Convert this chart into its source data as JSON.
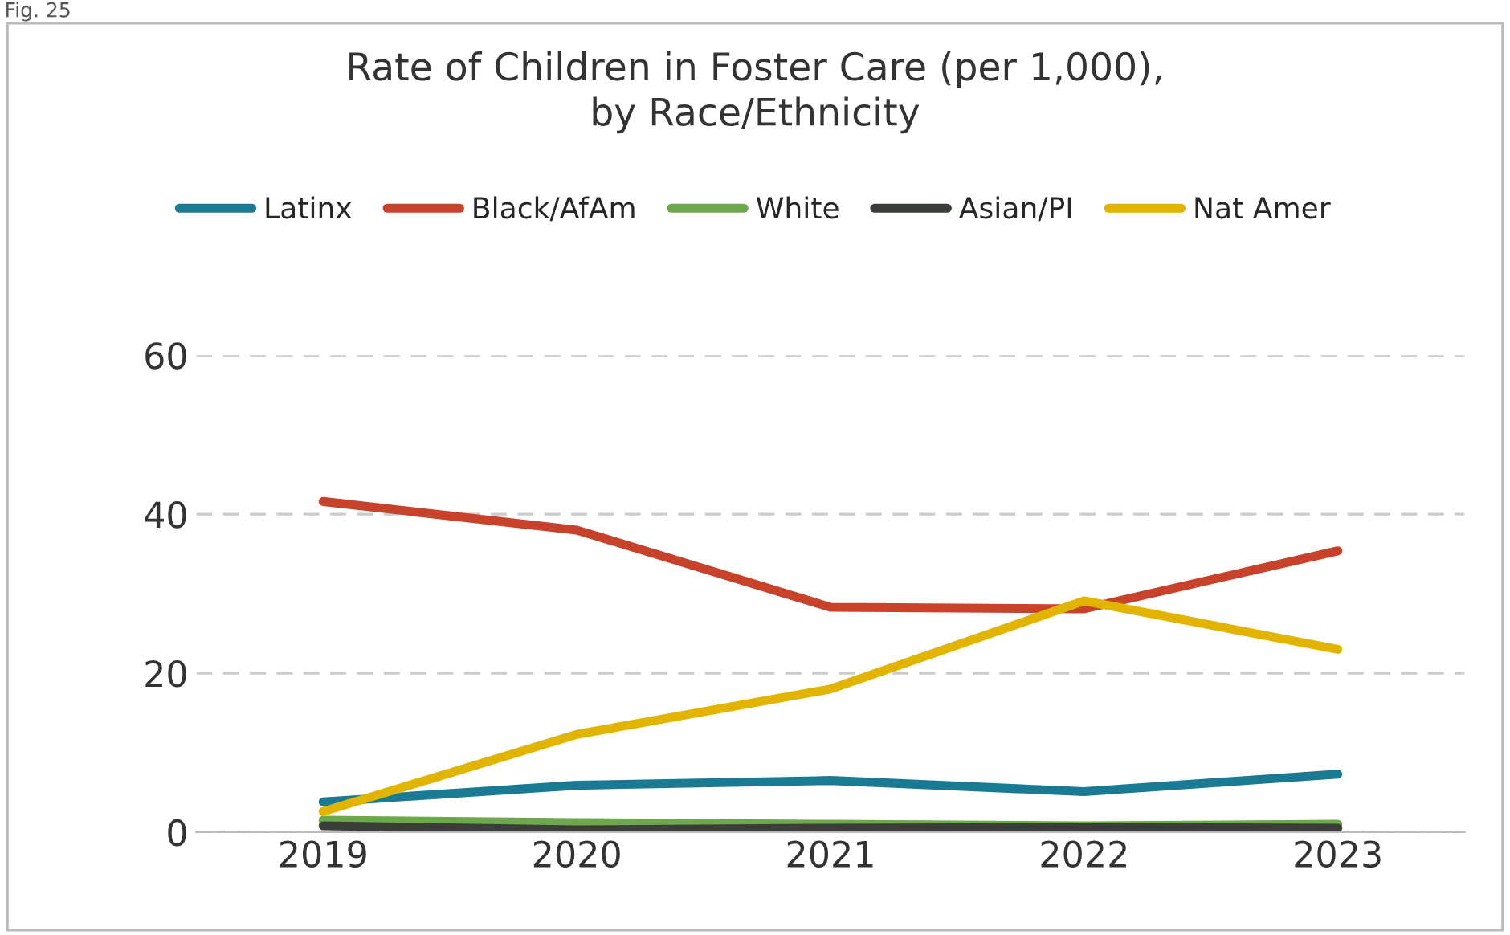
{
  "chart_data": {
    "type": "line",
    "title": "Rate of Children in Foster Care (per 1,000),\nby Race/Ethnicity",
    "annotations": [
      "Fig. 25"
    ],
    "categories": [
      "2019",
      "2020",
      "2021",
      "2022",
      "2023"
    ],
    "series": [
      {
        "name": "Latinx",
        "color": "#1a7a94",
        "values": [
          3.8,
          5.9,
          6.5,
          5.1,
          7.3
        ]
      },
      {
        "name": "Black/AfAm",
        "color": "#c8412b",
        "values": [
          41.6,
          38.0,
          28.3,
          28.1,
          35.4
        ]
      },
      {
        "name": "White",
        "color": "#6ea84c",
        "values": [
          1.5,
          1.2,
          1.0,
          0.8,
          1.0
        ]
      },
      {
        "name": "Asian/PI",
        "color": "#3a3d38",
        "values": [
          0.8,
          0.3,
          0.5,
          0.6,
          0.5
        ]
      },
      {
        "name": "Nat Amer",
        "color": "#e0b400",
        "values": [
          2.6,
          12.3,
          18.0,
          29.1,
          23.0
        ]
      }
    ],
    "ylim": [
      0,
      60
    ],
    "yticks": [
      0,
      20,
      40,
      60
    ],
    "grid": "y",
    "legend": "top",
    "marker": "none",
    "line_style": "solid"
  }
}
